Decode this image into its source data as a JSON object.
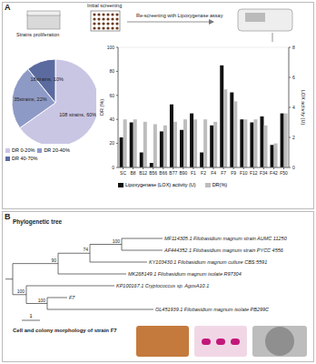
{
  "panel_labels": [
    "A",
    "B"
  ],
  "workflow": {
    "step1": "Strains proliferation",
    "step2": "Initial screening",
    "step3": "Re-screening with  Lipoxygenase assay"
  },
  "chart_data": [
    {
      "type": "pie",
      "categories": [
        "DR 0-20%",
        "DR 20-40%",
        "DR 40-70%"
      ],
      "values": [
        60,
        22,
        10
      ],
      "value_labels": [
        "108 strains, 60%",
        "35strains, 22%",
        "18strains, 10%"
      ],
      "colors": [
        "#c9c6e4",
        "#8e9ac6",
        "#5b6b9f"
      ],
      "data_labels": true,
      "legend": "bottom"
    },
    {
      "type": "bar",
      "categories": [
        "SC",
        "B8",
        "B12",
        "B56",
        "B66",
        "B77",
        "B90",
        "F1",
        "F2",
        "F4",
        "F7",
        "F9",
        "F10",
        "F12",
        "F34",
        "F42",
        "F50"
      ],
      "series": [
        {
          "name": "Lipoxygenase (LOX) activity (U)",
          "color": "#111111",
          "axis": "y2",
          "values": [
            2.0,
            3.0,
            1.0,
            0.3,
            2.4,
            4.2,
            2.5,
            3.6,
            1.0,
            2.8,
            6.8,
            5.0,
            3.2,
            3.0,
            3.4,
            1.5,
            3.6
          ]
        },
        {
          "name": "DR(%)",
          "color": "#bdbdbd",
          "values": [
            40,
            40,
            38,
            36,
            35,
            38,
            40,
            40,
            40,
            38,
            65,
            55,
            40,
            40,
            35,
            20,
            45
          ]
        }
      ],
      "ylabel": "DR (%)",
      "y2label": "LOX activity (U)",
      "ylim": [
        0,
        100
      ],
      "yticks": [
        0,
        20,
        40,
        60,
        80,
        100
      ],
      "y2lim": [
        0,
        8
      ],
      "y2ticks": [
        0,
        2,
        4,
        6,
        8
      ],
      "legend": "bottom"
    }
  ],
  "tree": {
    "title": "Phylogenetic tree",
    "leaves": [
      "MF114305.1 Filobasidium magnum strain AUMC 11250",
      "AF444352.1 Filobasidium magnum strain PYCC 4556",
      "KY103430.1 Filobasidium magnum culture CBS:5591",
      "MK268149.1 Filobasidium magnum isolate R97304",
      "KP100167.1 Cryptococcus sp. AgosA10.1",
      "F7",
      "OL451939.1 Filobasidium magnum isolate PB299C"
    ],
    "bootstrap": [
      100,
      74,
      90,
      100,
      100
    ],
    "scale_bar": 1
  },
  "morphology": {
    "title": "Cell and colony morphology of strain F7"
  }
}
